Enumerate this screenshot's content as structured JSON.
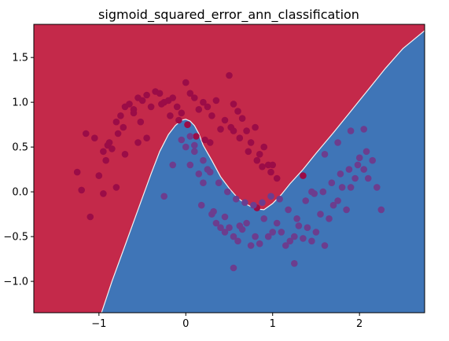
{
  "chart_data": {
    "type": "scatter",
    "title": "sigmoid_squared_error_ann_classification",
    "xlabel": "",
    "ylabel": "",
    "xlim": [
      -1.75,
      2.75
    ],
    "ylim": [
      -1.35,
      1.87
    ],
    "x_ticks": [
      -1,
      0,
      1,
      2
    ],
    "x_tick_labels": [
      "−1",
      "0",
      "1",
      "2"
    ],
    "y_ticks": [
      -1.0,
      -0.5,
      0.0,
      0.5,
      1.0,
      1.5
    ],
    "y_tick_labels": [
      "−1.0",
      "−0.5",
      "0.0",
      "0.5",
      "1.0",
      "1.5"
    ],
    "grid": false,
    "legend": "none",
    "colors": {
      "region_class_0": "#c4294a",
      "region_class_1": "#3f75b7",
      "points_class_0": "#9b0c47",
      "points_class_1": "#6c3d8e"
    },
    "decision_boundary": {
      "x": [
        -0.97,
        -0.85,
        -0.7,
        -0.55,
        -0.4,
        -0.3,
        -0.2,
        -0.12,
        -0.05,
        0.0,
        0.05,
        0.1,
        0.15,
        0.2,
        0.3,
        0.4,
        0.5,
        0.6,
        0.7,
        0.8,
        0.9,
        1.0,
        1.1,
        1.2,
        1.35,
        1.5,
        1.7,
        1.9,
        2.1,
        2.3,
        2.5,
        2.75
      ],
      "y": [
        -1.35,
        -1.0,
        -0.6,
        -0.2,
        0.2,
        0.45,
        0.64,
        0.74,
        0.8,
        0.81,
        0.79,
        0.74,
        0.65,
        0.52,
        0.35,
        0.17,
        0.04,
        -0.07,
        -0.14,
        -0.19,
        -0.2,
        -0.13,
        -0.03,
        0.09,
        0.25,
        0.43,
        0.66,
        0.9,
        1.14,
        1.38,
        1.6,
        1.8
      ]
    },
    "series": [
      {
        "class": 0,
        "x": [
          -1.25,
          -1.15,
          -1.05,
          -1.1,
          -0.95,
          -0.9,
          -0.85,
          -0.8,
          -0.75,
          -0.7,
          -0.65,
          -0.6,
          -0.55,
          -0.5,
          -0.45,
          -0.35,
          -0.3,
          -0.25,
          -0.2,
          -0.15,
          -0.1,
          -0.05,
          0.0,
          0.05,
          0.1,
          0.15,
          0.2,
          0.25,
          0.3,
          0.35,
          0.45,
          0.5,
          0.55,
          0.6,
          0.65,
          0.7,
          0.75,
          0.8,
          0.85,
          0.9,
          0.95,
          1.0,
          1.05,
          -1.0,
          -0.92,
          -0.88,
          -0.78,
          -0.72,
          -0.6,
          -0.52,
          -0.4,
          -0.28,
          -0.18,
          -0.08,
          0.02,
          0.12,
          0.22,
          0.28,
          0.4,
          0.52,
          0.62,
          0.72,
          0.82,
          0.88,
          0.98,
          -1.2,
          -0.95,
          -0.8,
          -0.7,
          -0.55,
          -0.45,
          0.55,
          1.35,
          0.82
        ],
        "y": [
          0.22,
          0.65,
          0.6,
          -0.28,
          0.45,
          0.52,
          0.48,
          0.78,
          0.85,
          0.95,
          0.98,
          0.92,
          1.05,
          1.02,
          1.08,
          1.12,
          1.1,
          1.0,
          1.02,
          1.05,
          0.95,
          0.88,
          1.22,
          1.1,
          1.05,
          0.92,
          1.0,
          0.95,
          0.85,
          1.02,
          0.8,
          1.3,
          0.98,
          0.9,
          0.82,
          0.68,
          0.55,
          0.72,
          0.42,
          0.5,
          0.3,
          0.3,
          0.15,
          0.18,
          0.35,
          0.55,
          0.65,
          0.72,
          0.88,
          0.78,
          0.95,
          0.98,
          0.85,
          0.8,
          0.75,
          0.62,
          0.58,
          0.55,
          0.7,
          0.72,
          0.6,
          0.45,
          0.35,
          0.28,
          0.22,
          0.02,
          -0.02,
          0.05,
          0.42,
          0.55,
          0.6,
          0.68,
          0.18,
          -0.18
        ]
      },
      {
        "class": 1,
        "x": [
          -0.05,
          0.05,
          0.1,
          0.15,
          0.2,
          0.25,
          0.3,
          0.35,
          0.4,
          0.45,
          0.5,
          0.55,
          0.6,
          0.65,
          0.7,
          0.75,
          0.8,
          0.85,
          0.9,
          0.95,
          1.0,
          1.05,
          1.1,
          1.15,
          1.2,
          1.25,
          1.3,
          1.35,
          1.4,
          1.45,
          1.5,
          1.55,
          1.6,
          1.65,
          1.7,
          1.75,
          1.8,
          1.85,
          1.9,
          1.95,
          2.0,
          2.05,
          2.1,
          2.15,
          2.2,
          2.25,
          -0.25,
          -0.15,
          0.0,
          0.1,
          0.2,
          0.28,
          0.38,
          0.48,
          0.58,
          0.68,
          0.78,
          0.88,
          0.98,
          1.08,
          1.18,
          1.28,
          1.38,
          1.48,
          1.58,
          1.68,
          1.78,
          1.88,
          1.98,
          2.08,
          0.05,
          0.18,
          0.32,
          0.45,
          0.62,
          1.45,
          1.6,
          1.75,
          1.9,
          2.05,
          0.55,
          1.25
        ],
        "y": [
          0.58,
          0.62,
          0.52,
          0.2,
          0.1,
          0.25,
          -0.25,
          -0.35,
          -0.4,
          -0.45,
          -0.4,
          -0.5,
          -0.55,
          -0.42,
          -0.35,
          -0.6,
          -0.5,
          -0.58,
          -0.3,
          -0.5,
          -0.45,
          -0.35,
          -0.45,
          -0.6,
          -0.55,
          -0.5,
          -0.38,
          -0.52,
          -0.4,
          -0.55,
          -0.45,
          -0.25,
          -0.6,
          -0.3,
          -0.15,
          -0.1,
          0.05,
          -0.2,
          0.05,
          0.15,
          0.38,
          0.25,
          0.15,
          0.35,
          0.05,
          -0.2,
          -0.05,
          0.3,
          0.5,
          0.45,
          0.35,
          0.22,
          0.1,
          0.0,
          -0.08,
          -0.12,
          -0.15,
          -0.12,
          -0.05,
          -0.08,
          -0.2,
          -0.3,
          -0.1,
          -0.02,
          0.0,
          0.1,
          0.2,
          0.25,
          0.3,
          0.45,
          0.3,
          -0.15,
          -0.22,
          -0.28,
          -0.38,
          0.0,
          0.42,
          0.55,
          0.68,
          0.7,
          -0.85,
          -0.8
        ]
      }
    ]
  }
}
